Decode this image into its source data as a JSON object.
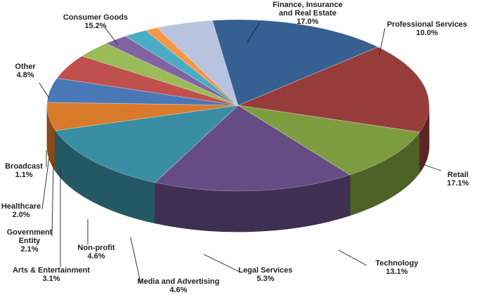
{
  "chart_data": {
    "type": "pie",
    "style": "3d-exploded-tilted",
    "title": "",
    "legend": "none",
    "slices": [
      {
        "name": "Finance, Insurance and Real Estate",
        "label_lines": [
          "Finance, Insurance",
          "and Real Estate"
        ],
        "pct_text": "17.0%",
        "value": 17.0,
        "color": "#963c3a"
      },
      {
        "name": "Professional Services",
        "label_lines": [
          "Professional Services"
        ],
        "pct_text": "10.0%",
        "value": 10.0,
        "color": "#7d9c3f"
      },
      {
        "name": "Retail",
        "label_lines": [
          "Retail"
        ],
        "pct_text": "17.1%",
        "value": 17.1,
        "color": "#654c84"
      },
      {
        "name": "Technology",
        "label_lines": [
          "Technology"
        ],
        "pct_text": "13.1%",
        "value": 13.1,
        "color": "#3a8ea3"
      },
      {
        "name": "Legal Services",
        "label_lines": [
          "Legal Services"
        ],
        "pct_text": "5.3%",
        "value": 5.3,
        "color": "#d97a2b"
      },
      {
        "name": "Media and Advertising",
        "label_lines": [
          "Media and Advertising"
        ],
        "pct_text": "4.6%",
        "value": 4.6,
        "color": "#4a78b7"
      },
      {
        "name": "Non-profit",
        "label_lines": [
          "Non-profit"
        ],
        "pct_text": "4.6%",
        "value": 4.6,
        "color": "#c0504d"
      },
      {
        "name": "Arts & Entertainment",
        "label_lines": [
          "Arts & Entertainment"
        ],
        "pct_text": "3.1%",
        "value": 3.1,
        "color": "#9bbb59"
      },
      {
        "name": "Government Entity",
        "label_lines": [
          "Government",
          "Entity"
        ],
        "pct_text": "2.1%",
        "value": 2.1,
        "color": "#8064a2"
      },
      {
        "name": "Healthcare",
        "label_lines": [
          "Healthcare"
        ],
        "pct_text": "2.0%",
        "value": 2.0,
        "color": "#4bacc6"
      },
      {
        "name": "Broadcast",
        "label_lines": [
          "Broadcast"
        ],
        "pct_text": "1.1%",
        "value": 1.1,
        "color": "#f79646"
      },
      {
        "name": "Other",
        "label_lines": [
          "Other"
        ],
        "pct_text": "4.8%",
        "value": 4.8,
        "color": "#b7c3df"
      },
      {
        "name": "Consumer Goods",
        "label_lines": [
          "Consumer Goods"
        ],
        "pct_text": "15.2%",
        "value": 15.2,
        "color": "#365f92"
      }
    ]
  }
}
